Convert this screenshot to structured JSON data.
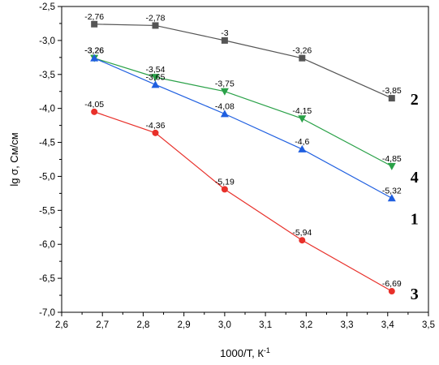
{
  "chart_data": {
    "type": "line",
    "xlabel": "1000/T, К",
    "xlabel_sup": "-1",
    "ylabel": "lg σ, См/см",
    "xlim": [
      2.6,
      3.5
    ],
    "ylim": [
      -7.0,
      -2.5
    ],
    "x_ticks": [
      "2,6",
      "2,7",
      "2,8",
      "2,9",
      "3,0",
      "3,1",
      "3,2",
      "3,3",
      "3,4",
      "3,5"
    ],
    "y_ticks": [
      "-2,5",
      "-3,0",
      "-3,5",
      "-4,0",
      "-4,5",
      "-5,0",
      "-5,5",
      "-6,0",
      "-6,5",
      "-7,0"
    ],
    "grid": false,
    "x": [
      2.68,
      2.83,
      3.0,
      3.19,
      3.41
    ],
    "series": [
      {
        "name": "2",
        "color": "#555555",
        "marker": "square",
        "values": [
          -2.76,
          -2.78,
          -3.0,
          -3.26,
          -3.85
        ],
        "labels": [
          "-2,76",
          "-2,78",
          "-3",
          "-3,26",
          "-3,85"
        ]
      },
      {
        "name": "4",
        "color": "#2aa148",
        "marker": "triangle-down",
        "values": [
          -3.26,
          -3.54,
          -3.75,
          -4.15,
          -4.85
        ],
        "labels": [
          "-3,26",
          "-3,54",
          "-3,75",
          "-4,15",
          "-4,85"
        ]
      },
      {
        "name": "1",
        "color": "#1f5fe0",
        "marker": "triangle-up",
        "values": [
          -3.26,
          -3.65,
          -4.08,
          -4.6,
          -5.32
        ],
        "labels": [
          "-3,26",
          "-3,65",
          "-4,08",
          "-4,6",
          "-5,32"
        ]
      },
      {
        "name": "3",
        "color": "#e8302a",
        "marker": "circle",
        "values": [
          -4.05,
          -4.36,
          -5.19,
          -5.94,
          -6.69
        ],
        "labels": [
          "-4,05",
          "-4,36",
          "-5,19",
          "-5,94",
          "-6,69"
        ]
      }
    ]
  }
}
